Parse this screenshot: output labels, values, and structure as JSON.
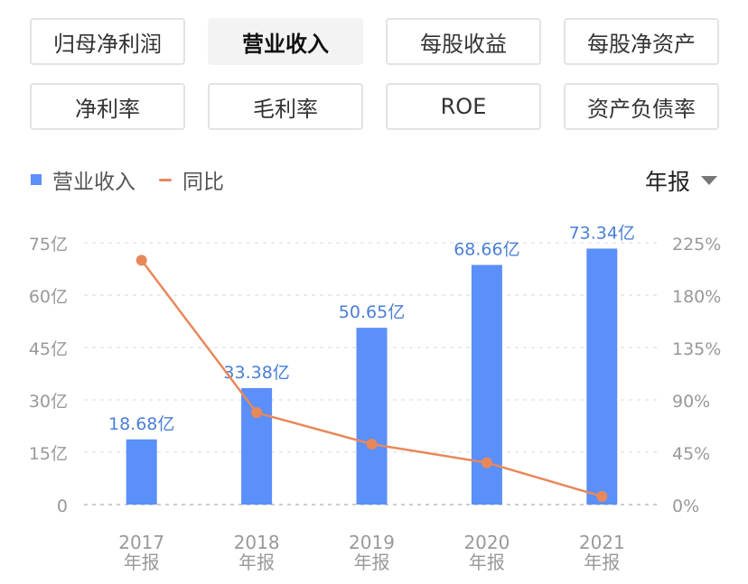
{
  "tabs": [
    {
      "label": "归母净利润",
      "active": false
    },
    {
      "label": "营业收入",
      "active": true
    },
    {
      "label": "每股收益",
      "active": false
    },
    {
      "label": "每股净资产",
      "active": false
    },
    {
      "label": "净利率",
      "active": false
    },
    {
      "label": "毛利率",
      "active": false
    },
    {
      "label": "ROE",
      "active": false
    },
    {
      "label": "资产负债率",
      "active": false
    }
  ],
  "legend": {
    "bar_label": "营业收入",
    "line_label": "同比"
  },
  "period": {
    "label": "年报"
  },
  "colors": {
    "bar": "#5b8ff9",
    "line": "#e8885a",
    "bar_label": "#4a7fd6",
    "axis_text": "#999999"
  },
  "chart_data": {
    "type": "bar",
    "categories": [
      "2017\n年报",
      "2018\n年报",
      "2019\n年报",
      "2020\n年报",
      "2021\n年报"
    ],
    "series": [
      {
        "name": "营业收入",
        "type": "bar",
        "axis": "left",
        "values": [
          18.68,
          33.38,
          50.65,
          68.66,
          73.34
        ],
        "labels": [
          "18.68亿",
          "33.38亿",
          "50.65亿",
          "68.66亿",
          "73.34亿"
        ]
      },
      {
        "name": "同比",
        "type": "line",
        "axis": "right",
        "values": [
          210,
          79,
          52,
          36,
          7
        ]
      }
    ],
    "y_left": {
      "min": 0,
      "max": 75,
      "ticks": [
        "0",
        "15亿",
        "30亿",
        "45亿",
        "60亿",
        "75亿"
      ]
    },
    "y_right": {
      "min": 0,
      "max": 225,
      "ticks": [
        "0%",
        "45%",
        "90%",
        "135%",
        "180%",
        "225%"
      ]
    },
    "grid": true
  }
}
